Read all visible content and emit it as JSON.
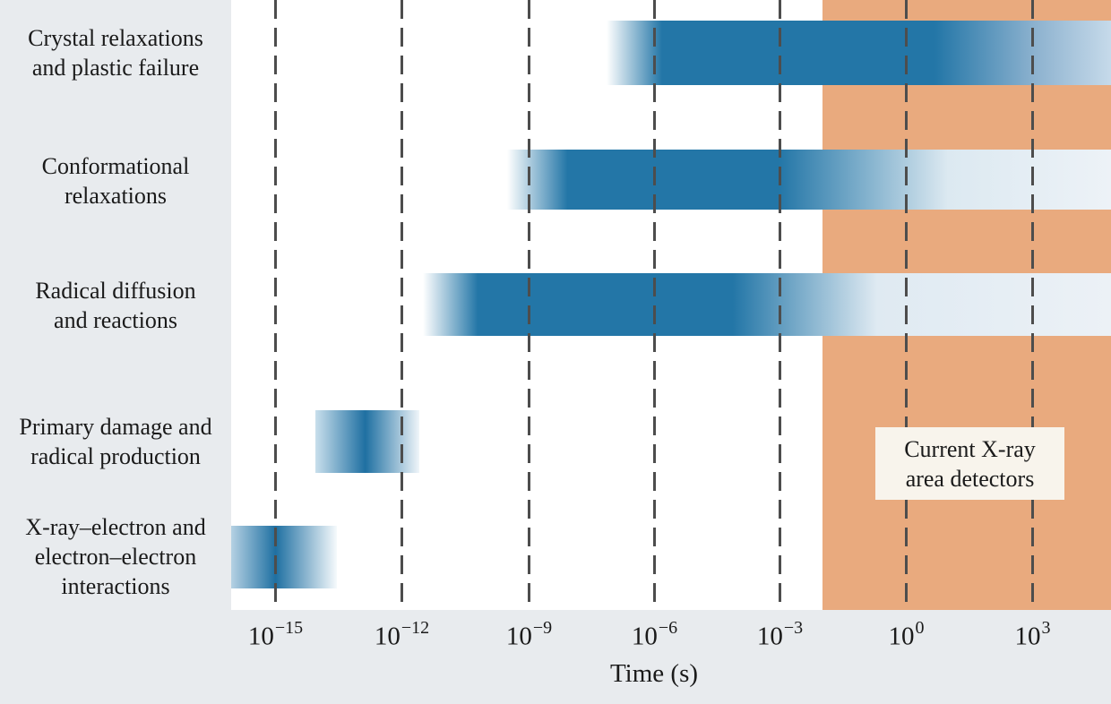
{
  "chart_data": {
    "type": "bar",
    "subtype": "horizontal-log-time-range-chart",
    "title": "",
    "xlabel": "Time (s)",
    "x_scale": "log10",
    "xlim_log10_seconds": [
      -16,
      5
    ],
    "grid": "dashed-vertical-gridlines",
    "legend": "none",
    "x_ticks": [
      {
        "base": "10",
        "exp": "−15"
      },
      {
        "base": "10",
        "exp": "−12"
      },
      {
        "base": "10",
        "exp": "−9"
      },
      {
        "base": "10",
        "exp": "−6"
      },
      {
        "base": "10",
        "exp": "−3"
      },
      {
        "base": "10",
        "exp": "0"
      },
      {
        "base": "10",
        "exp": "3"
      }
    ],
    "rows": [
      {
        "label": "Crystal relaxations and plastic failure",
        "label_lines": [
          "Crystal relaxations",
          "and plastic failure"
        ],
        "start_log10_s": -7.1,
        "peak_start_log10_s": -5.9,
        "peak_end_log10_s": 0.9,
        "end_log10_s": 4.9
      },
      {
        "label": "Conformational relaxations",
        "label_lines": [
          "Conformational",
          "relaxations"
        ],
        "start_log10_s": -9.5,
        "peak_start_log10_s": -8.1,
        "peak_end_log10_s": -3.0,
        "end_log10_s": 4.9
      },
      {
        "label": "Radical diffusion and reactions",
        "label_lines": [
          "Radical diffusion",
          "and reactions"
        ],
        "start_log10_s": -11.5,
        "peak_start_log10_s": -10.2,
        "peak_end_log10_s": -4.1,
        "end_log10_s": 4.9
      },
      {
        "label": "Primary damage and radical production",
        "label_lines": [
          "Primary damage and",
          "radical production"
        ],
        "start_log10_s": -14.0,
        "peak_start_log10_s": -12.9,
        "peak_end_log10_s": -12.6,
        "end_log10_s": -11.6
      },
      {
        "label": "X-ray–electron and electron–electron interactions",
        "label_lines": [
          "X-ray–electron and",
          "electron–electron",
          "interactions"
        ],
        "start_log10_s": -16.0,
        "peak_start_log10_s": -15.0,
        "peak_end_log10_s": -14.7,
        "end_log10_s": -13.5
      }
    ],
    "detector_band": {
      "label": "Current X-ray area detectors",
      "label_lines": [
        "Current X-ray",
        "area detectors"
      ],
      "start_log10_s": -2,
      "end_log10_s": 5
    },
    "colors": {
      "bar_blue": "#2376a7",
      "detector_orange": "#e9aa7e",
      "page_background": "#e8ebee",
      "plot_background": "#ffffff",
      "annotation_box": "#f8f4ec",
      "gridline": "#4d4d4d",
      "text": "#1a1a1a"
    }
  }
}
